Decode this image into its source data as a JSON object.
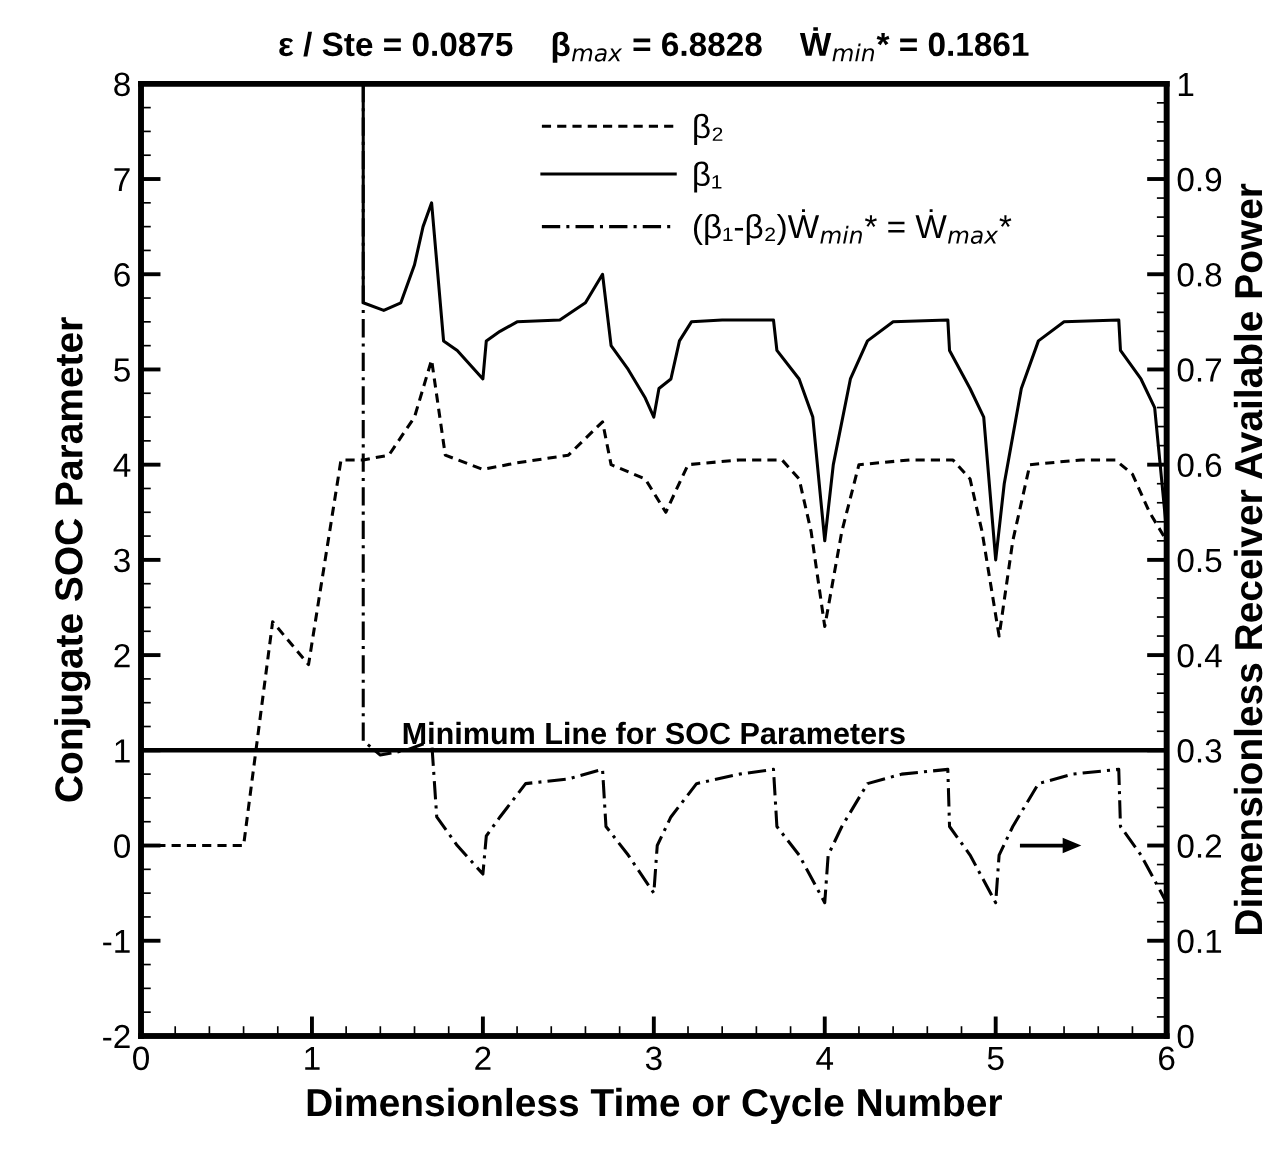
{
  "chart_data": {
    "type": "line",
    "title": "ε / Ste = 0.0875    β$_{max}$ = 6.8828    Ẇ$_{min}$* = 0.1861",
    "xlabel": "Dimensionless Time or Cycle Number",
    "ylabel": "Conjugate SOC Parameter",
    "y2label": "Dimensionless Receiver Available Power",
    "xlim": [
      0,
      6
    ],
    "xticks": [
      0,
      1,
      2,
      3,
      4,
      5,
      6
    ],
    "ylim": [
      -2,
      8
    ],
    "yticks": [
      -2,
      -1,
      0,
      1,
      2,
      3,
      4,
      5,
      6,
      7,
      8
    ],
    "y2lim": [
      0,
      1
    ],
    "y2ticks": [
      0,
      0.1,
      0.2,
      0.3,
      0.4,
      0.5,
      0.6,
      0.7,
      0.8,
      0.9,
      1
    ],
    "grid": false,
    "legend": "top",
    "marker": "none",
    "series": [
      {
        "name": "β₂",
        "color": "#000000",
        "line_style": "dashed",
        "x": [
          0,
          0.6,
          0.77,
          0.98,
          1.17,
          1.3,
          1.45,
          1.6,
          1.7,
          1.78,
          2.0,
          2.2,
          2.5,
          2.7,
          2.75,
          2.95,
          3.07,
          3.2,
          3.5,
          3.75,
          3.85,
          3.92,
          4.0,
          4.1,
          4.2,
          4.5,
          4.75,
          4.85,
          4.92,
          5.02,
          5.1,
          5.2,
          5.5,
          5.7,
          5.8,
          5.9,
          6.0
        ],
        "values": [
          0,
          0,
          2.35,
          1.9,
          4.05,
          4.05,
          4.1,
          4.5,
          5.1,
          4.1,
          3.95,
          4.02,
          4.1,
          4.45,
          4.0,
          3.85,
          3.5,
          4.0,
          4.05,
          4.05,
          3.85,
          3.3,
          2.3,
          3.3,
          4.0,
          4.05,
          4.05,
          3.85,
          3.3,
          2.2,
          3.2,
          4.0,
          4.05,
          4.05,
          3.9,
          3.5,
          3.2
        ]
      },
      {
        "name": "β₁",
        "color": "#000000",
        "line_style": "solid",
        "x": [
          1.3,
          1.3,
          1.42,
          1.52,
          1.6,
          1.65,
          1.7,
          1.77,
          1.85,
          1.95,
          2.0,
          2.02,
          2.1,
          2.2,
          2.45,
          2.6,
          2.7,
          2.75,
          2.85,
          2.95,
          3.0,
          3.03,
          3.1,
          3.15,
          3.22,
          3.4,
          3.7,
          3.72,
          3.85,
          3.93,
          4.0,
          4.05,
          4.15,
          4.25,
          4.4,
          4.72,
          4.73,
          4.85,
          4.93,
          5.0,
          5.05,
          5.15,
          5.25,
          5.4,
          5.72,
          5.73,
          5.85,
          5.93,
          6.0
        ],
        "values": [
          8,
          5.7,
          5.62,
          5.7,
          6.1,
          6.5,
          6.75,
          5.3,
          5.2,
          5.0,
          4.9,
          5.3,
          5.4,
          5.5,
          5.52,
          5.7,
          6.0,
          5.25,
          5.0,
          4.7,
          4.5,
          4.8,
          4.9,
          5.3,
          5.5,
          5.52,
          5.52,
          5.2,
          4.9,
          4.5,
          3.2,
          4.0,
          4.9,
          5.3,
          5.5,
          5.52,
          5.2,
          4.8,
          4.5,
          3.0,
          3.8,
          4.8,
          5.3,
          5.5,
          5.52,
          5.2,
          4.9,
          4.6,
          3.3
        ]
      },
      {
        "name": "(β₁-β₂)Ẇ$_{min}$* = Ẇ$_{max}$*",
        "color": "#000000",
        "line_style": "dashdot",
        "axis": "y2",
        "x": [
          1.3,
          1.3,
          1.4,
          1.55,
          1.7,
          1.73,
          1.85,
          2.0,
          2.02,
          2.1,
          2.25,
          2.5,
          2.7,
          2.72,
          2.85,
          3.0,
          3.02,
          3.1,
          3.25,
          3.5,
          3.7,
          3.72,
          3.85,
          4.0,
          4.02,
          4.1,
          4.25,
          4.45,
          4.72,
          4.73,
          4.85,
          5.0,
          5.02,
          5.1,
          5.25,
          5.45,
          5.72,
          5.73,
          5.85,
          6.0
        ],
        "values": [
          1.0,
          0.31,
          0.295,
          0.3,
          0.31,
          0.23,
          0.2,
          0.17,
          0.21,
          0.23,
          0.265,
          0.27,
          0.28,
          0.22,
          0.19,
          0.15,
          0.2,
          0.23,
          0.265,
          0.275,
          0.28,
          0.22,
          0.19,
          0.14,
          0.19,
          0.22,
          0.265,
          0.275,
          0.28,
          0.22,
          0.19,
          0.14,
          0.19,
          0.22,
          0.265,
          0.275,
          0.28,
          0.22,
          0.19,
          0.14
        ]
      }
    ],
    "ref_lines": [
      {
        "axis": "y",
        "value": 1,
        "label": "Minimum Line for SOC Parameters",
        "color": "#000000",
        "line_style": "solid"
      }
    ]
  }
}
